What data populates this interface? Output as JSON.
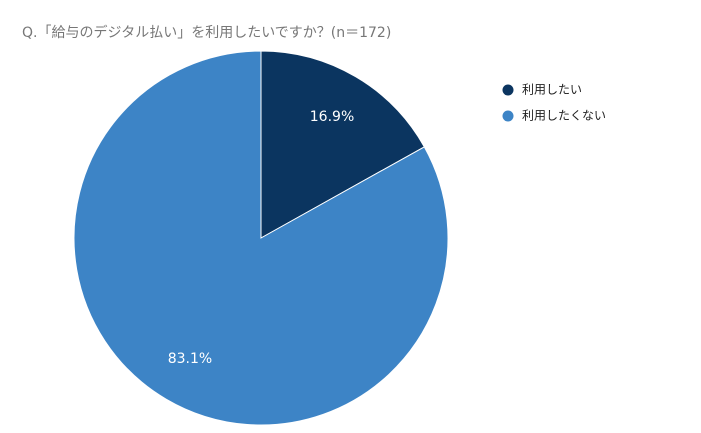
{
  "chart_data": {
    "type": "pie",
    "title": "Q.「給与のデジタル払い」を利用したいですか？(n＝172)",
    "categories": [
      "利用したい",
      "利用したくない"
    ],
    "values": [
      16.9,
      83.1
    ],
    "value_labels": [
      "16.9%",
      "83.1%"
    ],
    "colors": [
      "#0b3560",
      "#3d84c6"
    ],
    "legend": "right"
  }
}
